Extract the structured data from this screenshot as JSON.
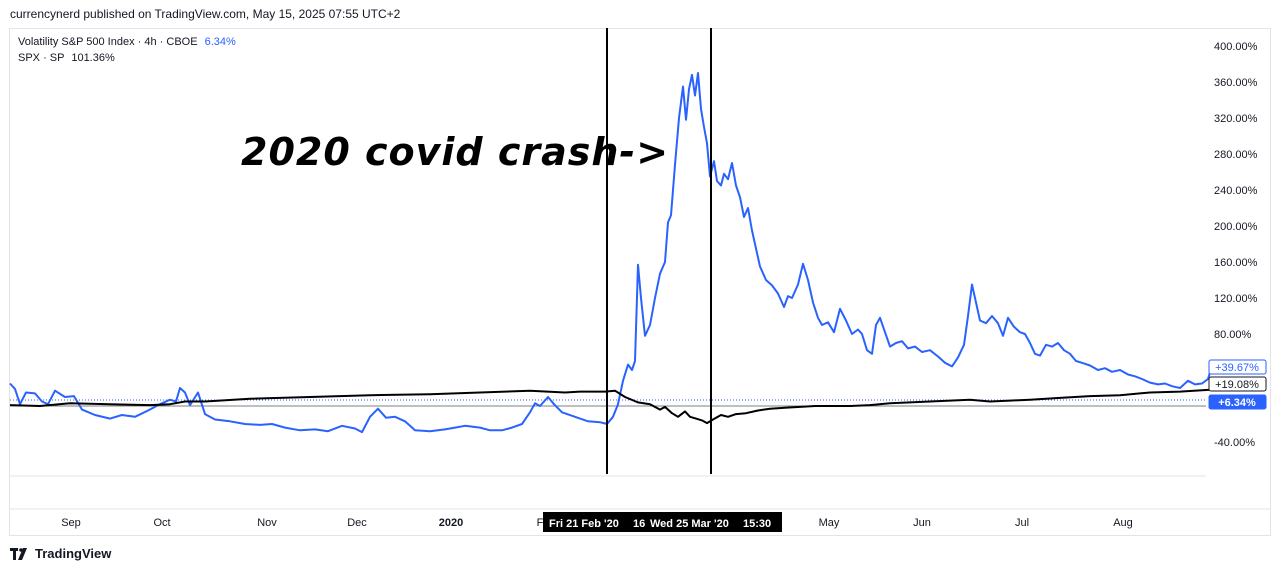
{
  "header": {
    "published": "currencynerd published on TradingView.com, May 15, 2025 07:55 UTC+2"
  },
  "legend": {
    "vix": {
      "label": "Volatility S&P 500 Index · 4h · CBOE",
      "value": "6.34%",
      "color": "#2962ff"
    },
    "spx": {
      "label": "SPX · SP",
      "value": "101.36%",
      "color": "#000000"
    }
  },
  "annotation": "2020 covid crash->",
  "footer": {
    "logo_text": "TradingView",
    "logo_icon": "tradingview-logo-icon"
  },
  "chart_data": {
    "type": "line",
    "y_unit": "%",
    "ylim": [
      -70,
      420
    ],
    "y_ticks": [
      "400.00%",
      "360.00%",
      "320.00%",
      "280.00%",
      "240.00%",
      "200.00%",
      "160.00%",
      "120.00%",
      "80.00%",
      "-40.00%"
    ],
    "x_labels": [
      "Sep",
      "Oct",
      "Nov",
      "Dec",
      "2020",
      "F",
      "May",
      "Jun",
      "Jul",
      "Aug"
    ],
    "crosshair_labels": [
      "Fri 21 Feb '20",
      "16",
      "Wed 25 Mar '20",
      "15:30"
    ],
    "price_labels": [
      {
        "text": "+39.67%",
        "style": "outline-blue"
      },
      {
        "text": "+19.08%",
        "style": "outline-black"
      },
      {
        "text": "+6.34%",
        "style": "filled-blue"
      }
    ],
    "series": [
      {
        "name": "Volatility S&P 500 Index",
        "color": "#2962ff",
        "points": [
          [
            0,
            25
          ],
          [
            5,
            19
          ],
          [
            10,
            2
          ],
          [
            16,
            15
          ],
          [
            25,
            14
          ],
          [
            32,
            5
          ],
          [
            38,
            2
          ],
          [
            45,
            17
          ],
          [
            55,
            10
          ],
          [
            64,
            11
          ],
          [
            72,
            -4
          ],
          [
            85,
            -10
          ],
          [
            100,
            -14
          ],
          [
            112,
            -10
          ],
          [
            125,
            -12
          ],
          [
            138,
            -5
          ],
          [
            150,
            2
          ],
          [
            160,
            7
          ],
          [
            166,
            5
          ],
          [
            170,
            20
          ],
          [
            175,
            15
          ],
          [
            180,
            1
          ],
          [
            188,
            15
          ],
          [
            195,
            -9
          ],
          [
            205,
            -15
          ],
          [
            220,
            -17
          ],
          [
            235,
            -20
          ],
          [
            250,
            -21
          ],
          [
            262,
            -20
          ],
          [
            275,
            -24
          ],
          [
            290,
            -27
          ],
          [
            305,
            -26
          ],
          [
            318,
            -28
          ],
          [
            332,
            -22
          ],
          [
            345,
            -25
          ],
          [
            352,
            -29
          ],
          [
            360,
            -12
          ],
          [
            368,
            -3
          ],
          [
            376,
            -13
          ],
          [
            385,
            -12
          ],
          [
            395,
            -17
          ],
          [
            405,
            -27
          ],
          [
            420,
            -28
          ],
          [
            435,
            -26
          ],
          [
            445,
            -24
          ],
          [
            455,
            -22
          ],
          [
            470,
            -24
          ],
          [
            480,
            -27
          ],
          [
            492,
            -27
          ],
          [
            502,
            -24
          ],
          [
            512,
            -20
          ],
          [
            520,
            -7
          ],
          [
            525,
            3
          ],
          [
            530,
            0
          ],
          [
            538,
            10
          ],
          [
            544,
            2
          ],
          [
            552,
            -7
          ],
          [
            565,
            -12
          ],
          [
            578,
            -17
          ],
          [
            590,
            -18
          ],
          [
            597,
            -20
          ],
          [
            603,
            -12
          ],
          [
            608,
            2
          ],
          [
            613,
            28
          ],
          [
            618,
            46
          ],
          [
            622,
            40
          ],
          [
            625,
            50
          ],
          [
            628,
            157
          ],
          [
            631,
            120
          ],
          [
            635,
            78
          ],
          [
            640,
            90
          ],
          [
            645,
            120
          ],
          [
            650,
            147
          ],
          [
            655,
            160
          ],
          [
            658,
            204
          ],
          [
            661,
            212
          ],
          [
            665,
            268
          ],
          [
            669,
            320
          ],
          [
            673,
            355
          ],
          [
            676,
            318
          ],
          [
            679,
            352
          ],
          [
            682,
            368
          ],
          [
            685,
            345
          ],
          [
            688,
            370
          ],
          [
            691,
            330
          ],
          [
            694,
            310
          ],
          [
            697,
            292
          ],
          [
            700,
            255
          ],
          [
            704,
            272
          ],
          [
            707,
            250
          ],
          [
            711,
            245
          ],
          [
            714,
            258
          ],
          [
            718,
            252
          ],
          [
            722,
            270
          ],
          [
            726,
            245
          ],
          [
            730,
            232
          ],
          [
            734,
            210
          ],
          [
            738,
            220
          ],
          [
            742,
            195
          ],
          [
            746,
            175
          ],
          [
            750,
            155
          ],
          [
            756,
            140
          ],
          [
            762,
            134
          ],
          [
            768,
            125
          ],
          [
            774,
            110
          ],
          [
            778,
            122
          ],
          [
            782,
            120
          ],
          [
            788,
            135
          ],
          [
            793,
            158
          ],
          [
            798,
            140
          ],
          [
            803,
            115
          ],
          [
            808,
            98
          ],
          [
            812,
            90
          ],
          [
            818,
            93
          ],
          [
            824,
            82
          ],
          [
            830,
            108
          ],
          [
            836,
            95
          ],
          [
            842,
            80
          ],
          [
            848,
            85
          ],
          [
            852,
            80
          ],
          [
            857,
            62
          ],
          [
            862,
            58
          ],
          [
            866,
            90
          ],
          [
            870,
            98
          ],
          [
            875,
            82
          ],
          [
            880,
            66
          ],
          [
            886,
            70
          ],
          [
            892,
            72
          ],
          [
            898,
            64
          ],
          [
            905,
            66
          ],
          [
            912,
            60
          ],
          [
            920,
            62
          ],
          [
            928,
            55
          ],
          [
            935,
            48
          ],
          [
            942,
            44
          ],
          [
            948,
            54
          ],
          [
            954,
            68
          ],
          [
            958,
            100
          ],
          [
            962,
            135
          ],
          [
            966,
            115
          ],
          [
            970,
            95
          ],
          [
            976,
            92
          ],
          [
            982,
            100
          ],
          [
            988,
            92
          ],
          [
            993,
            78
          ],
          [
            998,
            98
          ],
          [
            1004,
            88
          ],
          [
            1010,
            82
          ],
          [
            1015,
            80
          ],
          [
            1020,
            70
          ],
          [
            1025,
            58
          ],
          [
            1030,
            56
          ],
          [
            1036,
            68
          ],
          [
            1042,
            66
          ],
          [
            1048,
            70
          ],
          [
            1054,
            62
          ],
          [
            1060,
            58
          ],
          [
            1066,
            50
          ],
          [
            1072,
            48
          ],
          [
            1080,
            45
          ],
          [
            1088,
            40
          ],
          [
            1095,
            42
          ],
          [
            1102,
            38
          ],
          [
            1110,
            40
          ],
          [
            1118,
            35
          ],
          [
            1125,
            33
          ],
          [
            1132,
            30
          ],
          [
            1140,
            26
          ],
          [
            1148,
            24
          ],
          [
            1155,
            25
          ],
          [
            1162,
            22
          ],
          [
            1170,
            20
          ],
          [
            1178,
            28
          ],
          [
            1185,
            24
          ],
          [
            1192,
            25
          ],
          [
            1198,
            30
          ],
          [
            1202,
            45
          ],
          [
            1206,
            38
          ]
        ]
      },
      {
        "name": "SPX",
        "color": "#000000",
        "points": [
          [
            0,
            1
          ],
          [
            30,
            0
          ],
          [
            60,
            3
          ],
          [
            100,
            2
          ],
          [
            140,
            1
          ],
          [
            160,
            2
          ],
          [
            175,
            5
          ],
          [
            195,
            5
          ],
          [
            240,
            8
          ],
          [
            300,
            10
          ],
          [
            360,
            12
          ],
          [
            420,
            13
          ],
          [
            470,
            15
          ],
          [
            520,
            17
          ],
          [
            555,
            15
          ],
          [
            570,
            16
          ],
          [
            595,
            16
          ],
          [
            605,
            17
          ],
          [
            615,
            10
          ],
          [
            628,
            4
          ],
          [
            640,
            2
          ],
          [
            650,
            -4
          ],
          [
            655,
            -1
          ],
          [
            662,
            -8
          ],
          [
            668,
            -12
          ],
          [
            675,
            -6
          ],
          [
            680,
            -12
          ],
          [
            686,
            -14
          ],
          [
            692,
            -16
          ],
          [
            697,
            -19
          ],
          [
            703,
            -15
          ],
          [
            711,
            -10
          ],
          [
            718,
            -12
          ],
          [
            726,
            -9
          ],
          [
            736,
            -8
          ],
          [
            748,
            -5
          ],
          [
            760,
            -3
          ],
          [
            775,
            -2
          ],
          [
            790,
            -1
          ],
          [
            805,
            0
          ],
          [
            820,
            0
          ],
          [
            840,
            0
          ],
          [
            860,
            1
          ],
          [
            880,
            3
          ],
          [
            900,
            4
          ],
          [
            920,
            5
          ],
          [
            940,
            6
          ],
          [
            960,
            7
          ],
          [
            980,
            5
          ],
          [
            1000,
            6
          ],
          [
            1020,
            7
          ],
          [
            1050,
            9
          ],
          [
            1080,
            11
          ],
          [
            1110,
            12
          ],
          [
            1140,
            15
          ],
          [
            1170,
            16
          ],
          [
            1200,
            18
          ],
          [
            1206,
            19
          ]
        ]
      }
    ]
  }
}
